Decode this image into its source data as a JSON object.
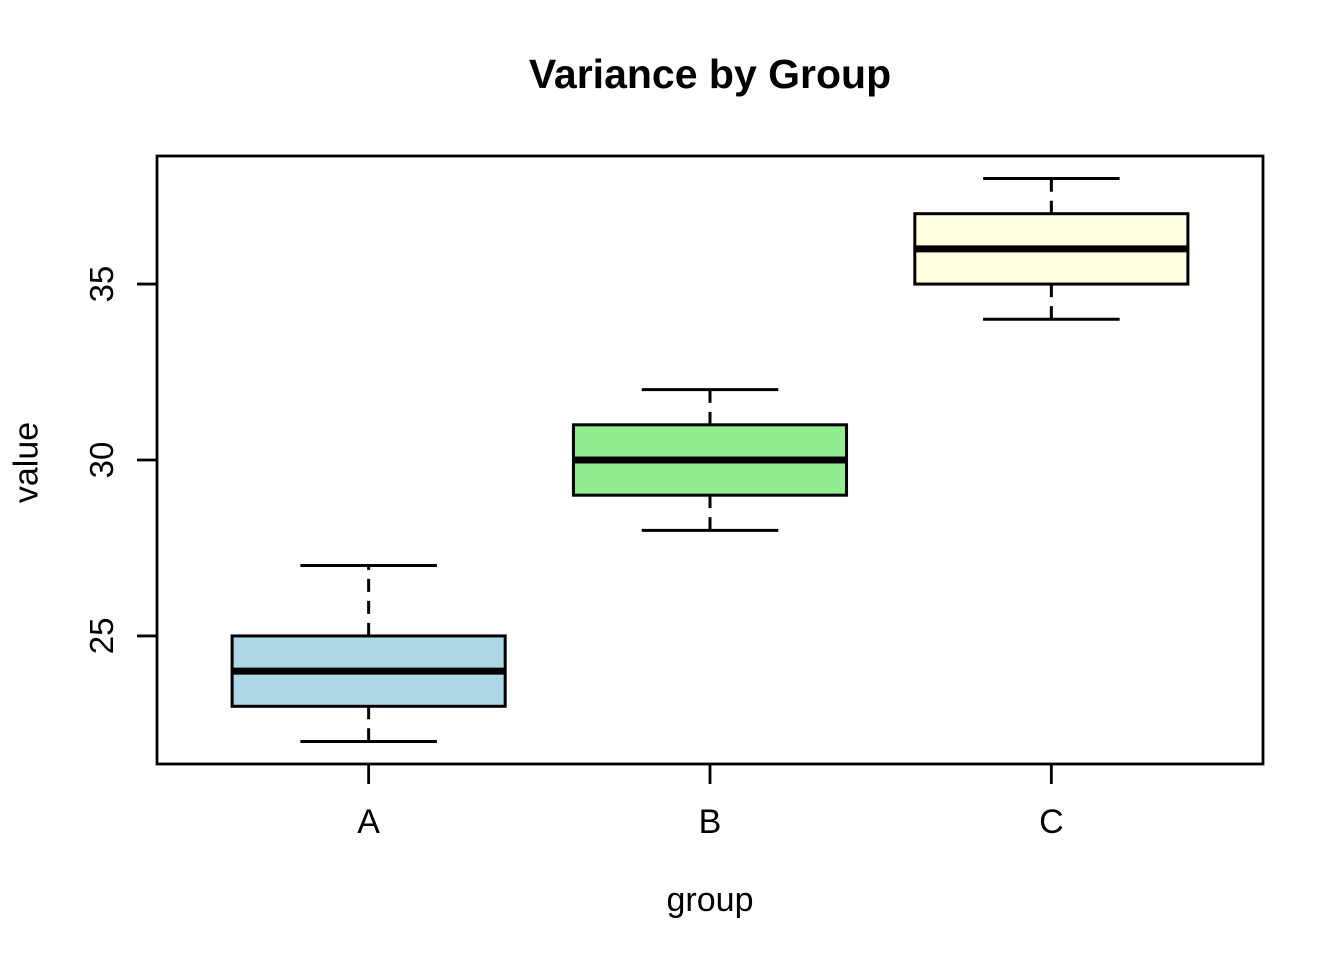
{
  "title": "Variance by Group",
  "chart_data": {
    "type": "boxplot",
    "title": "Variance by Group",
    "xlabel": "group",
    "ylabel": "value",
    "categories": [
      "A",
      "B",
      "C"
    ],
    "y_ticks": [
      25,
      30,
      35
    ],
    "ylim": [
      21.36,
      38.64
    ],
    "grid": false,
    "legend": "none",
    "series": [
      {
        "name": "A",
        "min": 22,
        "q1": 23,
        "median": 24,
        "q3": 25,
        "max": 27,
        "fill": "#ADD8E6"
      },
      {
        "name": "B",
        "min": 28,
        "q1": 29,
        "median": 30,
        "q3": 31,
        "max": 32,
        "fill": "#90EE90"
      },
      {
        "name": "C",
        "min": 34,
        "q1": 35,
        "median": 36,
        "q3": 37,
        "max": 38,
        "fill": "#FFFFE0"
      }
    ],
    "colors": {
      "stroke": "#000000",
      "background": "#FFFFFF"
    }
  }
}
